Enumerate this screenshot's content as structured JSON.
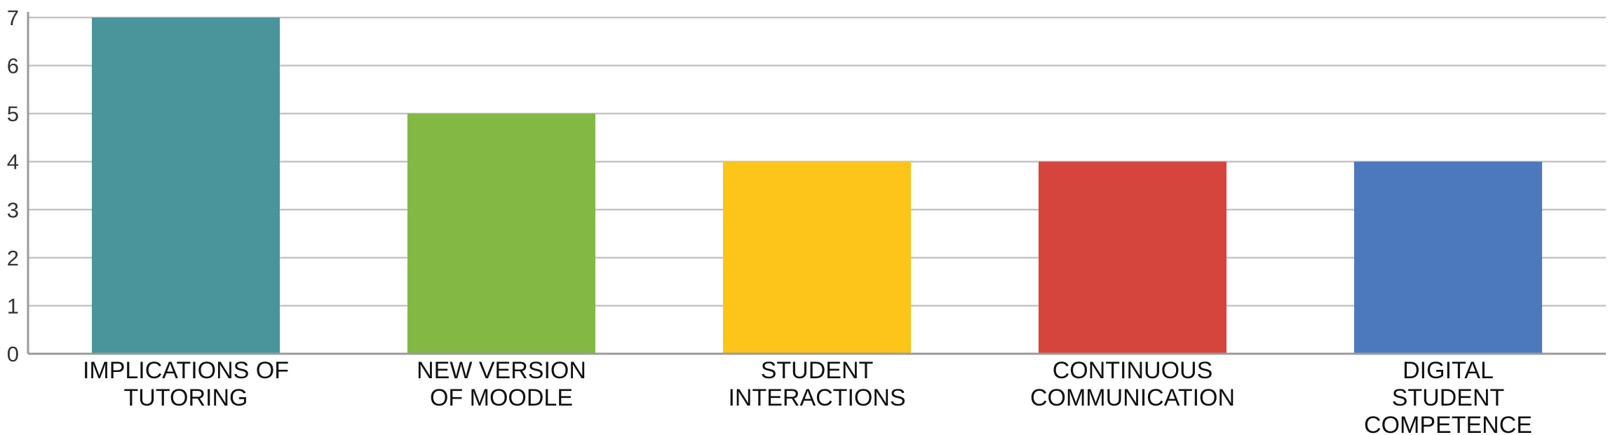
{
  "chart_data": {
    "type": "bar",
    "categories": [
      [
        "IMPLICATIONS OF",
        "TUTORING"
      ],
      [
        "NEW VERSION",
        "OF MOODLE"
      ],
      [
        "STUDENT",
        "INTERACTIONS"
      ],
      [
        "CONTINUOUS",
        "COMMUNICATION"
      ],
      [
        "DIGITAL",
        "STUDENT",
        "COMPETENCE"
      ]
    ],
    "values": [
      7,
      5,
      4,
      4,
      4
    ],
    "colors": [
      "#4a959c",
      "#83b844",
      "#fdc419",
      "#d6453d",
      "#4c79bd"
    ],
    "yticks": [
      "0",
      "1",
      "2",
      "3",
      "4",
      "5",
      "6",
      "7"
    ],
    "ylim": [
      0,
      7
    ],
    "grid": true,
    "legend": "none"
  }
}
